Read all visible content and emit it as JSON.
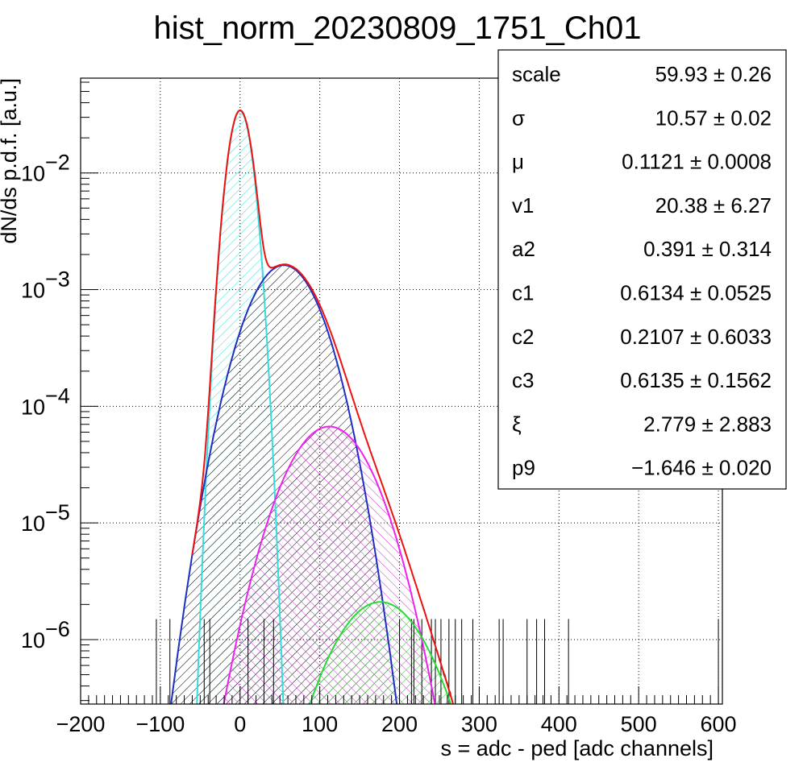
{
  "chart_data": {
    "type": "line",
    "title": "hist_norm_20230809_1751_Ch01",
    "xlabel": "s = adc - ped [adc channels]",
    "ylabel": "dN/ds p.d.f. [a.u.]",
    "xlim": [
      -200,
      605
    ],
    "ylim": [
      2.8e-07,
      0.065
    ],
    "y_scale": "log",
    "grid": true,
    "x_ticks": [
      {
        "value": -200,
        "label": "−200"
      },
      {
        "value": -100,
        "label": "−100"
      },
      {
        "value": 0,
        "label": "0"
      },
      {
        "value": 100,
        "label": "100"
      },
      {
        "value": 200,
        "label": "200"
      },
      {
        "value": 300,
        "label": "300"
      },
      {
        "value": 400,
        "label": "400"
      },
      {
        "value": 500,
        "label": "500"
      },
      {
        "value": 600,
        "label": "600"
      }
    ],
    "y_ticks": [
      {
        "value": 0.01,
        "base": "10",
        "exp": "−2"
      },
      {
        "value": 0.001,
        "base": "10",
        "exp": "−3"
      },
      {
        "value": 0.0001,
        "base": "10",
        "exp": "−4"
      },
      {
        "value": 1e-05,
        "base": "10",
        "exp": "−5"
      },
      {
        "value": 1e-06,
        "base": "10",
        "exp": "−6"
      }
    ],
    "stats_box": {
      "placement": "top-right",
      "rows": [
        {
          "name": "scale",
          "value": "59.93 ± 0.26"
        },
        {
          "name": "σ",
          "value": "10.57 ± 0.02"
        },
        {
          "name": "μ",
          "value": "0.1121 ± 0.0008"
        },
        {
          "name": "v1",
          "value": "20.38 ± 6.27"
        },
        {
          "name": "a2",
          "value": "0.391 ± 0.314"
        },
        {
          "name": "c1",
          "value": "0.6134 ± 0.0525"
        },
        {
          "name": "c2",
          "value": "0.2107 ± 0.6033"
        },
        {
          "name": "c3",
          "value": "0.6135 ± 0.1562"
        },
        {
          "name": "ξ",
          "value": "2.779 ± 2.883"
        },
        {
          "name": "p9",
          "value": "−1.646 ± 0.020"
        }
      ]
    },
    "components": [
      {
        "color": "#33dddd",
        "hatch": true,
        "amplitude": 0.034,
        "mean": 0,
        "sigma": 11.2
      },
      {
        "color": "#1b2fc4",
        "hatch": true,
        "amplitude": 0.00162,
        "mean": 55,
        "sigma": 34
      },
      {
        "color": "#ee22ee",
        "hatch": true,
        "amplitude": 6.7e-05,
        "mean": 112,
        "sigma": 40
      },
      {
        "color": "#22dd33",
        "hatch": true,
        "amplitude": 2.1e-06,
        "mean": 176,
        "sigma": 44
      }
    ],
    "total_fit": {
      "color": "#ee1111"
    },
    "histogram": {
      "color": "#000000",
      "bin_width": 1
    }
  }
}
